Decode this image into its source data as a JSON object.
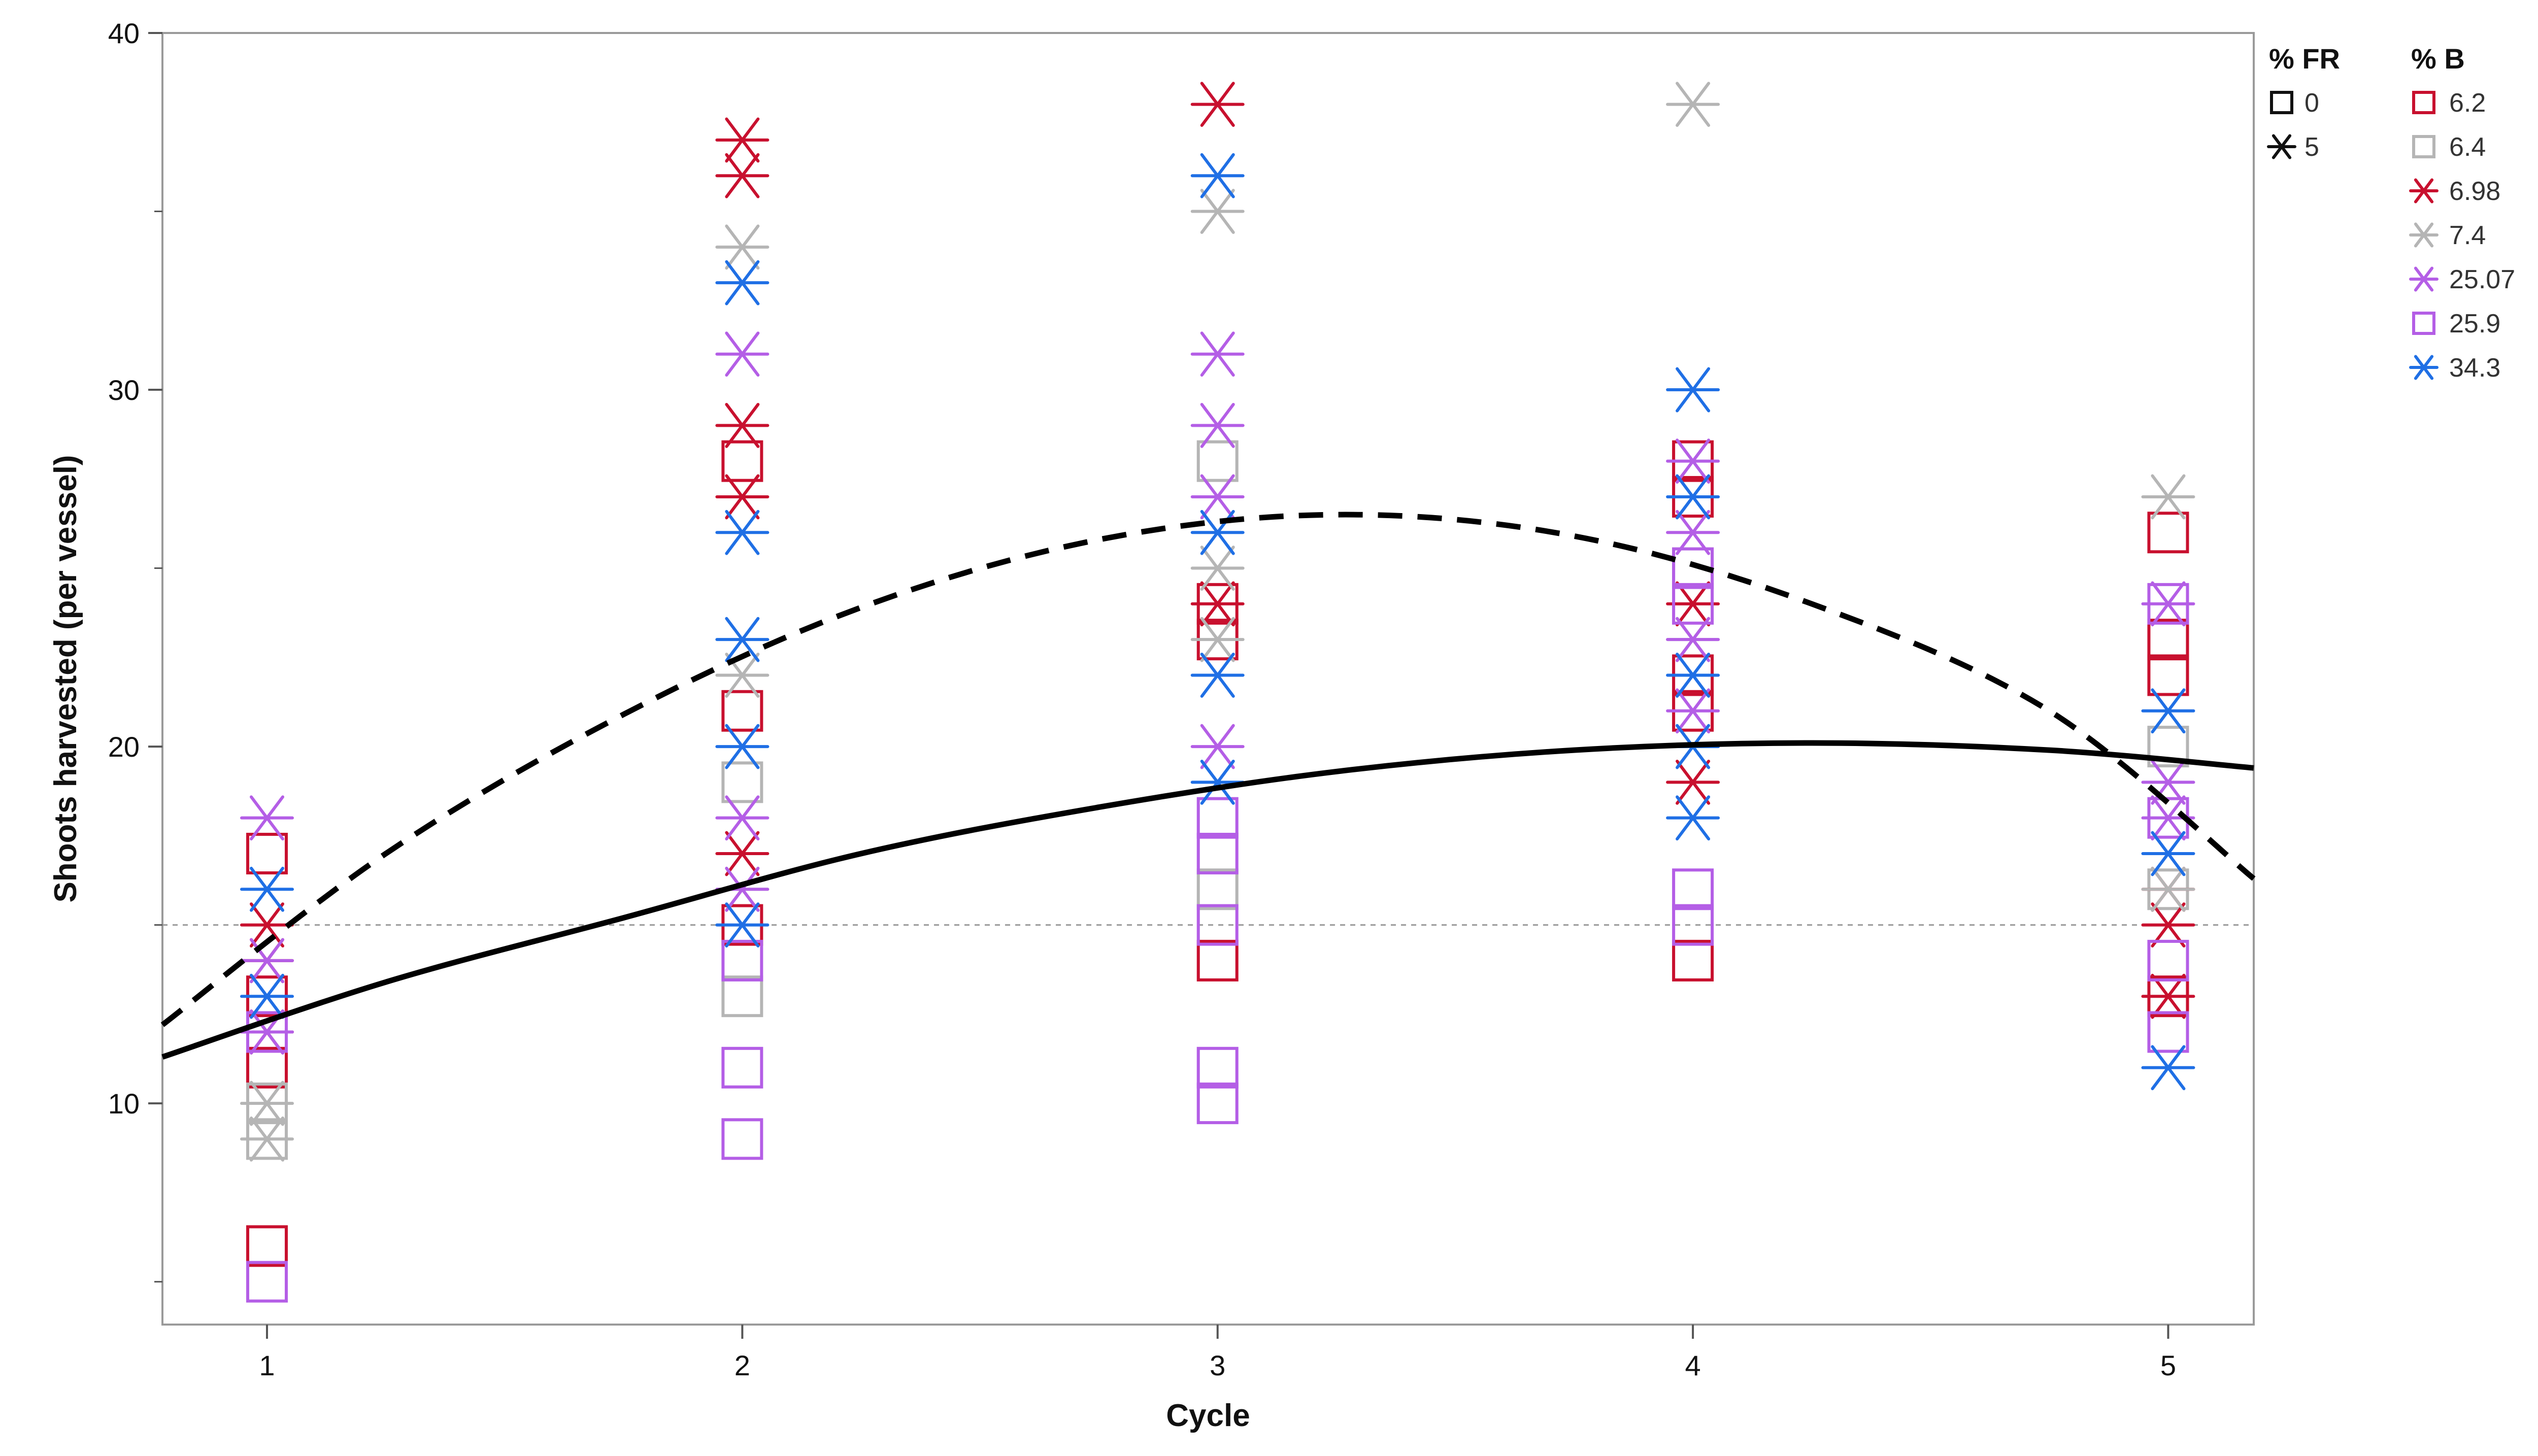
{
  "chart_data": {
    "type": "scatter",
    "xlabel": "Cycle",
    "ylabel": "Shoots harvested (per vessel)",
    "xlim": [
      0.78,
      5.18
    ],
    "ylim": [
      3.8,
      40
    ],
    "xticks": [
      1,
      2,
      3,
      4,
      5
    ],
    "yticks": [
      10,
      20,
      30,
      40
    ],
    "reference_line_y": 15,
    "legend_position": "right",
    "legend_fr": {
      "title": "% FR",
      "items": [
        {
          "label": "0",
          "marker": "square"
        },
        {
          "label": "5",
          "marker": "asterisk"
        }
      ]
    },
    "legend_b": {
      "title": "% B",
      "items": [
        {
          "label": "6.2",
          "marker": "square",
          "color": "#c8102e"
        },
        {
          "label": "6.4",
          "marker": "square",
          "color": "#b5b5b5"
        },
        {
          "label": "6.98",
          "marker": "asterisk",
          "color": "#c8102e"
        },
        {
          "label": "7.4",
          "marker": "asterisk",
          "color": "#b5b5b5"
        },
        {
          "label": "25.07",
          "marker": "asterisk",
          "color": "#b45ee6"
        },
        {
          "label": "25.9",
          "marker": "square",
          "color": "#b45ee6"
        },
        {
          "label": "34.3",
          "marker": "asterisk",
          "color": "#1f6fe5"
        }
      ]
    },
    "series": [
      {
        "name": "6.2",
        "marker": "square",
        "color": "#c8102e",
        "points": [
          [
            1,
            17
          ],
          [
            1,
            13
          ],
          [
            1,
            11
          ],
          [
            1,
            6
          ],
          [
            2,
            28
          ],
          [
            2,
            21
          ],
          [
            2,
            15
          ],
          [
            3,
            24
          ],
          [
            3,
            23
          ],
          [
            3,
            14
          ],
          [
            4,
            28
          ],
          [
            4,
            27
          ],
          [
            4,
            22
          ],
          [
            4,
            21
          ],
          [
            4,
            14
          ],
          [
            5,
            26
          ],
          [
            5,
            23
          ],
          [
            5,
            22
          ],
          [
            5,
            13
          ]
        ]
      },
      {
        "name": "6.4",
        "marker": "square",
        "color": "#b5b5b5",
        "points": [
          [
            1,
            10
          ],
          [
            1,
            9
          ],
          [
            2,
            19
          ],
          [
            2,
            13
          ],
          [
            3,
            28
          ],
          [
            3,
            16
          ],
          [
            4,
            25
          ],
          [
            5,
            20
          ],
          [
            5,
            16
          ]
        ]
      },
      {
        "name": "6.98",
        "marker": "asterisk",
        "color": "#c8102e",
        "points": [
          [
            1,
            15
          ],
          [
            1,
            14
          ],
          [
            1,
            12
          ],
          [
            2,
            37
          ],
          [
            2,
            36
          ],
          [
            2,
            29
          ],
          [
            2,
            27
          ],
          [
            2,
            17
          ],
          [
            3,
            38
          ],
          [
            3,
            24
          ],
          [
            4,
            24
          ],
          [
            4,
            19
          ],
          [
            5,
            16
          ],
          [
            5,
            15
          ],
          [
            5,
            13
          ]
        ]
      },
      {
        "name": "7.4",
        "marker": "asterisk",
        "color": "#b5b5b5",
        "points": [
          [
            1,
            10
          ],
          [
            1,
            9
          ],
          [
            2,
            34
          ],
          [
            2,
            22
          ],
          [
            2,
            16
          ],
          [
            3,
            35
          ],
          [
            3,
            25
          ],
          [
            3,
            23
          ],
          [
            4,
            38
          ],
          [
            4,
            23
          ],
          [
            5,
            27
          ],
          [
            5,
            16
          ]
        ]
      },
      {
        "name": "25.07",
        "marker": "asterisk",
        "color": "#b45ee6",
        "points": [
          [
            1,
            18
          ],
          [
            1,
            14
          ],
          [
            1,
            12
          ],
          [
            2,
            31
          ],
          [
            2,
            18
          ],
          [
            2,
            16
          ],
          [
            3,
            31
          ],
          [
            3,
            29
          ],
          [
            3,
            27
          ],
          [
            3,
            20
          ],
          [
            4,
            28
          ],
          [
            4,
            26
          ],
          [
            4,
            23
          ],
          [
            4,
            21
          ],
          [
            5,
            24
          ],
          [
            5,
            19
          ],
          [
            5,
            18
          ]
        ]
      },
      {
        "name": "25.9",
        "marker": "square",
        "color": "#b45ee6",
        "points": [
          [
            1,
            12
          ],
          [
            1,
            5
          ],
          [
            2,
            14
          ],
          [
            2,
            11
          ],
          [
            2,
            9
          ],
          [
            3,
            18
          ],
          [
            3,
            17
          ],
          [
            3,
            15
          ],
          [
            3,
            11
          ],
          [
            3,
            10
          ],
          [
            4,
            25
          ],
          [
            4,
            24
          ],
          [
            4,
            16
          ],
          [
            4,
            15
          ],
          [
            5,
            24
          ],
          [
            5,
            18
          ],
          [
            5,
            14
          ],
          [
            5,
            12
          ]
        ]
      },
      {
        "name": "34.3",
        "marker": "asterisk",
        "color": "#1f6fe5",
        "points": [
          [
            1,
            16
          ],
          [
            1,
            13
          ],
          [
            2,
            33
          ],
          [
            2,
            26
          ],
          [
            2,
            23
          ],
          [
            2,
            20
          ],
          [
            2,
            15
          ],
          [
            3,
            36
          ],
          [
            3,
            26
          ],
          [
            3,
            22
          ],
          [
            3,
            19
          ],
          [
            4,
            30
          ],
          [
            4,
            27
          ],
          [
            4,
            22
          ],
          [
            4,
            20
          ],
          [
            4,
            18
          ],
          [
            5,
            21
          ],
          [
            5,
            17
          ],
          [
            5,
            11
          ]
        ]
      }
    ],
    "fit_lines": [
      {
        "style": "solid",
        "color": "#000000",
        "x": [
          0.78,
          1.25,
          1.75,
          2.25,
          2.75,
          3.25,
          3.75,
          4.25,
          4.75,
          5.18
        ],
        "y": [
          11.3,
          13.4,
          15.2,
          17.0,
          18.3,
          19.3,
          19.9,
          20.1,
          19.9,
          19.4
        ]
      },
      {
        "style": "dashed",
        "color": "#000000",
        "x": [
          0.78,
          1.25,
          1.75,
          2.25,
          2.75,
          3.25,
          3.75,
          4.25,
          4.75,
          5.18
        ],
        "y": [
          12.2,
          17.0,
          20.9,
          23.9,
          25.8,
          26.5,
          25.9,
          24.0,
          21.0,
          16.3
        ]
      }
    ]
  }
}
